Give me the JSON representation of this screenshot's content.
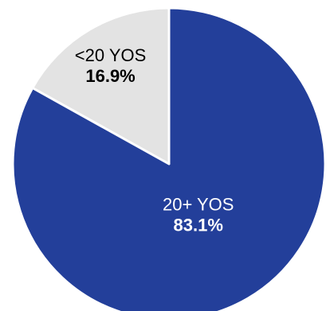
{
  "chart_data": {
    "type": "pie",
    "title": "",
    "slices": [
      {
        "label": "20+ YOS",
        "value_label": "83.1%",
        "value": 83.1,
        "color": "#233f9a",
        "text_color": "#ffffff"
      },
      {
        "label": "<20 YOS",
        "value_label": "16.9%",
        "value": 16.9,
        "color": "#e3e3e3",
        "text_color": "#000000"
      }
    ],
    "start_angle_deg": 0,
    "direction": "clockwise",
    "legend": "none"
  }
}
